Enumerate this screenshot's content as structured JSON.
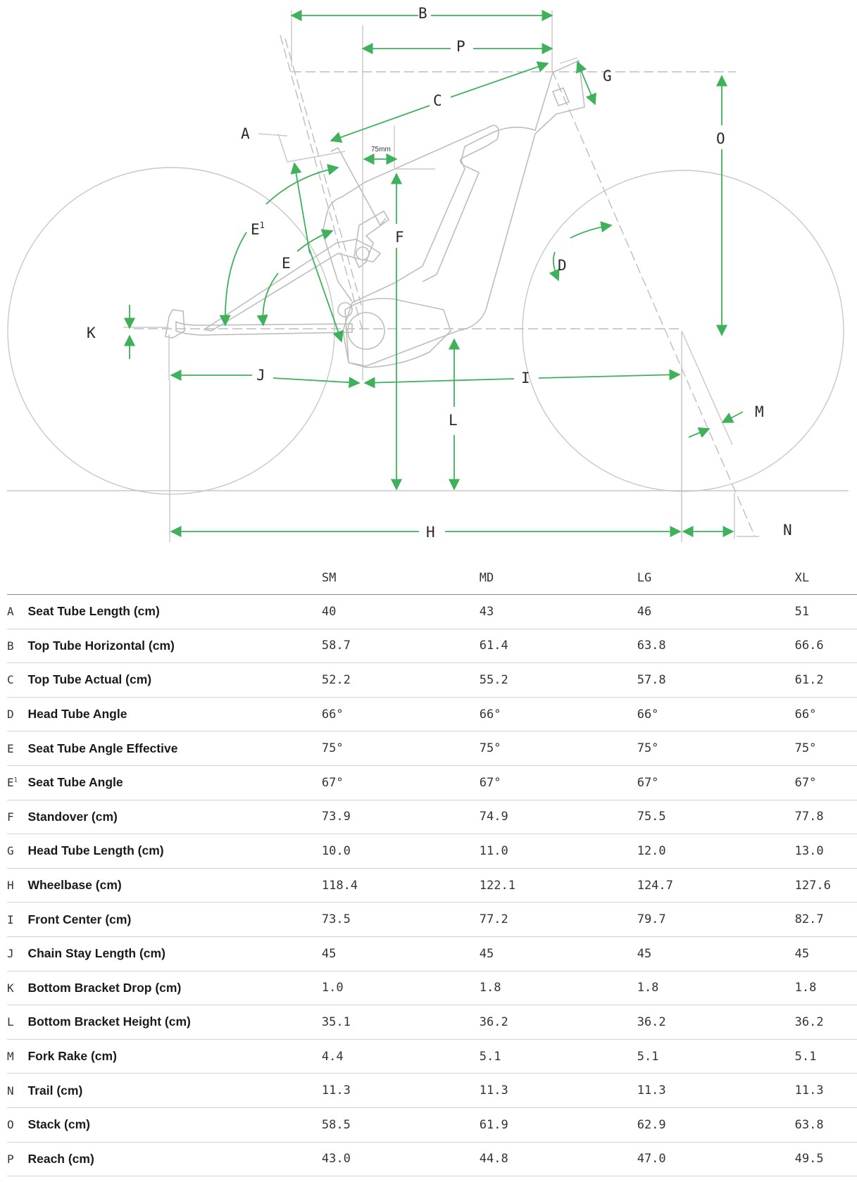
{
  "diagram": {
    "labels": {
      "A": "A",
      "B": "B",
      "C": "C",
      "D": "D",
      "E": "E",
      "E1": "E",
      "E1_sup": "1",
      "F": "F",
      "G": "G",
      "H": "H",
      "I": "I",
      "J": "J",
      "K": "K",
      "L": "L",
      "M": "M",
      "N": "N",
      "O": "O",
      "P": "P"
    },
    "offset_label": "75mm",
    "colors": {
      "arrow": "#3fb15a",
      "line": "#bdbdbd"
    }
  },
  "table": {
    "sizes": [
      "SM",
      "MD",
      "LG",
      "XL"
    ],
    "rows": [
      {
        "key": "A",
        "sup": "",
        "label": "Seat Tube Length (cm)",
        "values": [
          "40",
          "43",
          "46",
          "51"
        ]
      },
      {
        "key": "B",
        "sup": "",
        "label": "Top Tube Horizontal (cm)",
        "values": [
          "58.7",
          "61.4",
          "63.8",
          "66.6"
        ]
      },
      {
        "key": "C",
        "sup": "",
        "label": "Top Tube Actual (cm)",
        "values": [
          "52.2",
          "55.2",
          "57.8",
          "61.2"
        ]
      },
      {
        "key": "D",
        "sup": "",
        "label": "Head Tube Angle",
        "values": [
          "66°",
          "66°",
          "66°",
          "66°"
        ]
      },
      {
        "key": "E",
        "sup": "",
        "label": "Seat Tube Angle Effective",
        "values": [
          "75°",
          "75°",
          "75°",
          "75°"
        ]
      },
      {
        "key": "E",
        "sup": "1",
        "label": "Seat Tube Angle",
        "values": [
          "67°",
          "67°",
          "67°",
          "67°"
        ]
      },
      {
        "key": "F",
        "sup": "",
        "label": "Standover (cm)",
        "values": [
          "73.9",
          "74.9",
          "75.5",
          "77.8"
        ]
      },
      {
        "key": "G",
        "sup": "",
        "label": "Head Tube Length (cm)",
        "values": [
          "10.0",
          "11.0",
          "12.0",
          "13.0"
        ]
      },
      {
        "key": "H",
        "sup": "",
        "label": "Wheelbase (cm)",
        "values": [
          "118.4",
          "122.1",
          "124.7",
          "127.6"
        ]
      },
      {
        "key": "I",
        "sup": "",
        "label": "Front Center (cm)",
        "values": [
          "73.5",
          "77.2",
          "79.7",
          "82.7"
        ]
      },
      {
        "key": "J",
        "sup": "",
        "label": "Chain Stay Length (cm)",
        "values": [
          "45",
          "45",
          "45",
          "45"
        ]
      },
      {
        "key": "K",
        "sup": "",
        "label": "Bottom Bracket Drop (cm)",
        "values": [
          "1.0",
          "1.8",
          "1.8",
          "1.8"
        ]
      },
      {
        "key": "L",
        "sup": "",
        "label": "Bottom Bracket Height (cm)",
        "values": [
          "35.1",
          "36.2",
          "36.2",
          "36.2"
        ]
      },
      {
        "key": "M",
        "sup": "",
        "label": "Fork Rake (cm)",
        "values": [
          "4.4",
          "5.1",
          "5.1",
          "5.1"
        ]
      },
      {
        "key": "N",
        "sup": "",
        "label": "Trail (cm)",
        "values": [
          "11.3",
          "11.3",
          "11.3",
          "11.3"
        ]
      },
      {
        "key": "O",
        "sup": "",
        "label": "Stack (cm)",
        "values": [
          "58.5",
          "61.9",
          "62.9",
          "63.8"
        ]
      },
      {
        "key": "P",
        "sup": "",
        "label": "Reach (cm)",
        "values": [
          "43.0",
          "44.8",
          "47.0",
          "49.5"
        ]
      }
    ]
  }
}
